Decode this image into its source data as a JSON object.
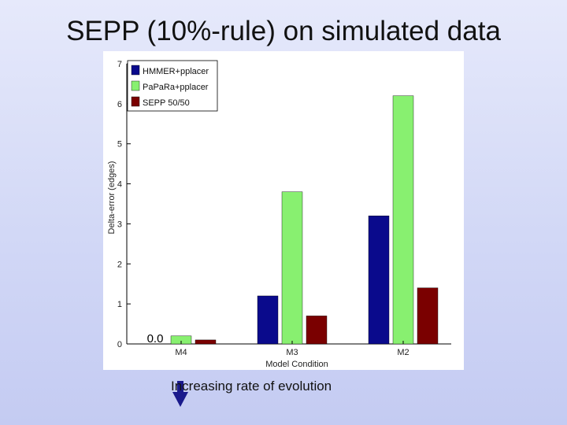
{
  "slide": {
    "title": "SEPP (10%-rule) on simulated data",
    "annotation": "Increasing rate of evolution",
    "arrow_icon": "down-arrow-icon",
    "arrow_color": "#1a1a8c"
  },
  "chart_data": {
    "type": "bar",
    "title": "",
    "xlabel": "Model Condition",
    "ylabel": "Delta-error (edges)",
    "ylim": [
      0,
      7
    ],
    "yticks": [
      "0",
      "1",
      "2",
      "3",
      "4",
      "5",
      "6",
      "7"
    ],
    "categories": [
      "M4",
      "M3",
      "M2"
    ],
    "series": [
      {
        "name": "HMMER+pplacer",
        "color": "#0a0a8c",
        "values": [
          0.0,
          1.2,
          3.2
        ]
      },
      {
        "name": "PaPaRa+pplacer",
        "color": "#88f070",
        "values": [
          0.2,
          3.8,
          6.2
        ]
      },
      {
        "name": "SEPP 50/50",
        "color": "#7a0000",
        "values": [
          0.1,
          0.7,
          1.4
        ]
      }
    ],
    "data_labels": [
      {
        "series": 0,
        "category": 0,
        "text": "0.0"
      }
    ],
    "grid": false,
    "legend_position": "top-left"
  }
}
